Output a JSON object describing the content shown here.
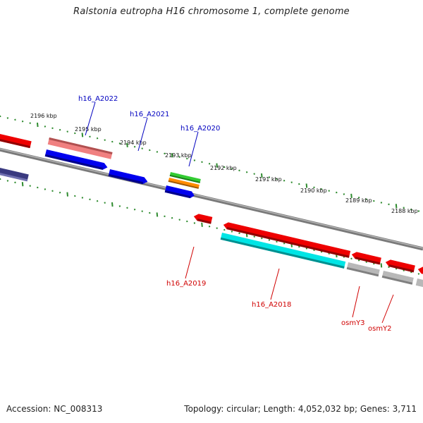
{
  "title": "Ralstonia eutropha H16 chromosome 1, complete genome",
  "footer": {
    "accession_label": "Accession:",
    "accession": "NC_008313",
    "topology_label": "Topology:",
    "topology": "circular",
    "length_label": "Length:",
    "length": "4,052,032 bp",
    "genes_label": "Genes:",
    "genes": "3,711"
  },
  "scale": {
    "unit": "kbp",
    "ticks": [
      "2196 kbp",
      "2195 kbp",
      "2194 kbp",
      "2193 kbp",
      "2192 kbp",
      "2191 kbp",
      "2190 kbp",
      "2189 kbp",
      "2188 kbp"
    ]
  },
  "gene_labels": {
    "forward": [
      "h16_A2022",
      "h16_A2021",
      "h16_A2020"
    ],
    "reverse": [
      "h16_A2019",
      "h16_A2018",
      "osmY3",
      "osmY2"
    ]
  },
  "colors": {
    "backbone": "#808080",
    "tick": "#2e8b2e",
    "forward_label": "#0000c0",
    "reverse_label": "#d00000",
    "cds_forward": "#0000ee",
    "cds_reverse": "#ee0000",
    "cds_light": "#f08080",
    "cds_green": "#33cc33",
    "cds_orange": "#ff8c00",
    "cds_cyan": "#00e5e5",
    "cds_gray": "#b8b8b8",
    "cds_navy": "#3a3a80"
  }
}
